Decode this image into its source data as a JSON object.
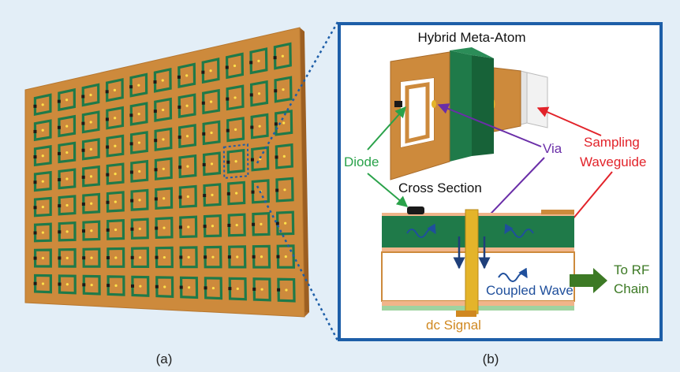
{
  "panel_a": {
    "caption": "(a)",
    "grid": {
      "rows": 8,
      "cols": 11,
      "highlighted_cell": [
        3,
        8
      ]
    }
  },
  "panel_b": {
    "caption": "(b)",
    "title": "Hybrid Meta-Atom",
    "labels": {
      "diode": "Diode",
      "via": "Via",
      "sampling_line1": "Sampling",
      "sampling_line2": "Waveguide",
      "cross_section": "Cross Section",
      "coupled_wave": "Coupled Wave",
      "to_rf_line1": "To RF",
      "to_rf_line2": "Chain",
      "dc_signal": "dc Signal"
    }
  },
  "colors": {
    "background": "#e3eef7",
    "copper": "#cd8a3c",
    "substrate_green": "#1f7a49",
    "frame_blue": "#1d5ea8",
    "diode_green": "#2aa24a",
    "via_purple": "#6a2ea8",
    "sampling_red": "#e2232a",
    "rf_green": "#3d7a25",
    "wave_blue": "#1f4f9c",
    "dc_orange": "#d08820",
    "via_gold": "#e4b42a"
  }
}
